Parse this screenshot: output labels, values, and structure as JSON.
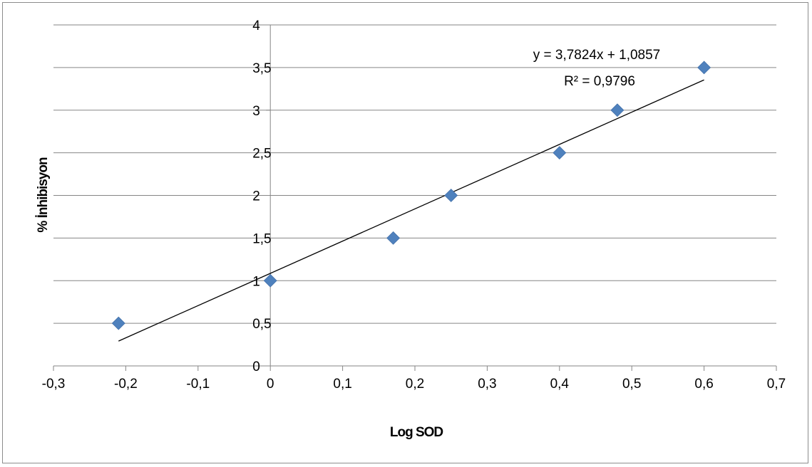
{
  "chart_data": {
    "type": "scatter",
    "xlabel": "Log SOD",
    "ylabel": "% İnhibisyon",
    "xlim": [
      -0.3,
      0.7
    ],
    "ylim": [
      0,
      4
    ],
    "x_ticks": [
      -0.3,
      -0.2,
      -0.1,
      0,
      0.1,
      0.2,
      0.3,
      0.4,
      0.5,
      0.6,
      0.7
    ],
    "x_tick_labels": [
      "-0,3",
      "-0,2",
      "-0,1",
      "0",
      "0,1",
      "0,2",
      "0,3",
      "0,4",
      "0,5",
      "0,6",
      "0,7"
    ],
    "y_ticks": [
      0,
      0.5,
      1,
      1.5,
      2,
      2.5,
      3,
      3.5,
      4
    ],
    "y_tick_labels": [
      "0",
      "0,5",
      "1",
      "1,5",
      "2",
      "2,5",
      "3",
      "3,5",
      "4"
    ],
    "gridlines": "horizontal",
    "series": [
      {
        "marker": "diamond",
        "color": "#4f81bd",
        "points": [
          {
            "x": -0.21,
            "y": 0.5
          },
          {
            "x": 0.0,
            "y": 1.0
          },
          {
            "x": 0.17,
            "y": 1.5
          },
          {
            "x": 0.25,
            "y": 2.0
          },
          {
            "x": 0.4,
            "y": 2.5
          },
          {
            "x": 0.48,
            "y": 3.0
          },
          {
            "x": 0.6,
            "y": 3.5
          }
        ]
      }
    ],
    "trendline": {
      "type": "linear",
      "slope": 3.7824,
      "intercept": 1.0857,
      "x_range": [
        -0.21,
        0.6
      ],
      "equation_label": "y = 3,7824x + 1,0857",
      "r2_label": "R² = 0,9796",
      "color": "#000000"
    }
  }
}
